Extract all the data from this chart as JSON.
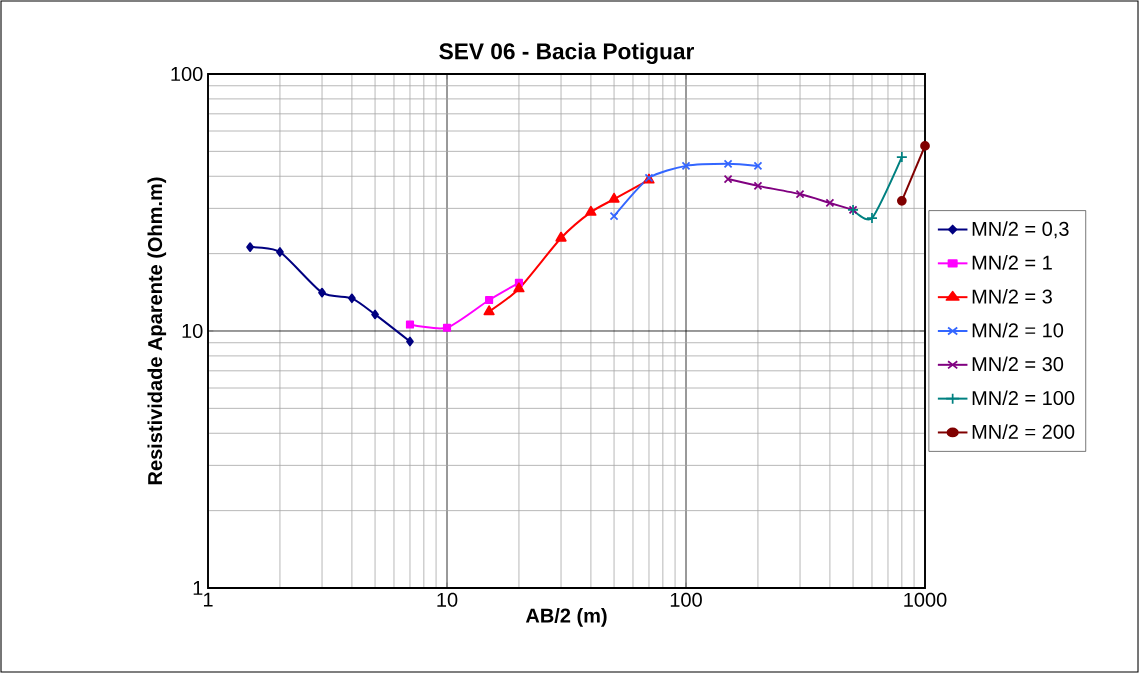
{
  "chart_data": {
    "type": "line",
    "title": "SEV 06 - Bacia Potiguar",
    "xlabel": "AB/2 (m)",
    "ylabel": "Resistividade Aparente (Ohm.m)",
    "log": "xy",
    "grid": true,
    "legend": "right",
    "xlim": [
      1,
      1000
    ],
    "ylim": [
      1,
      100
    ],
    "xticks": [
      1,
      10,
      100,
      1000
    ],
    "yticks": [
      1,
      10,
      100
    ],
    "series": [
      {
        "name": "MN/2 = 0,3",
        "color": "#000080",
        "marker": "diamond",
        "x": [
          1.5,
          2,
          3,
          4,
          5,
          7
        ],
        "values": [
          21.2,
          20.3,
          14.1,
          13.4,
          11.6,
          9.1
        ]
      },
      {
        "name": "MN/2 = 1",
        "color": "#ff00ff",
        "marker": "square",
        "x": [
          7,
          10,
          15,
          20
        ],
        "values": [
          10.6,
          10.3,
          13.2,
          15.4
        ]
      },
      {
        "name": "MN/2 = 3",
        "color": "#ff0000",
        "marker": "triangle",
        "x": [
          15,
          20,
          30,
          40,
          50,
          70
        ],
        "values": [
          11.9,
          14.6,
          23.0,
          29.0,
          32.6,
          38.7
        ]
      },
      {
        "name": "MN/2 = 10",
        "color": "#3366ff",
        "marker": "cross",
        "x": [
          50,
          70,
          100,
          150,
          200
        ],
        "values": [
          28.0,
          39.4,
          43.9,
          44.7,
          43.9
        ]
      },
      {
        "name": "MN/2 = 30",
        "color": "#800080",
        "marker": "cross",
        "x": [
          150,
          200,
          300,
          400,
          500
        ],
        "values": [
          39.0,
          36.7,
          34.1,
          31.5,
          29.6
        ]
      },
      {
        "name": "MN/2 = 100",
        "color": "#008080",
        "marker": "plus",
        "x": [
          500,
          600,
          800
        ],
        "values": [
          29.6,
          27.5,
          47.5
        ]
      },
      {
        "name": "MN/2 = 200",
        "color": "#800000",
        "marker": "circle",
        "x": [
          800,
          1000
        ],
        "values": [
          32.1,
          52.5
        ]
      }
    ]
  }
}
